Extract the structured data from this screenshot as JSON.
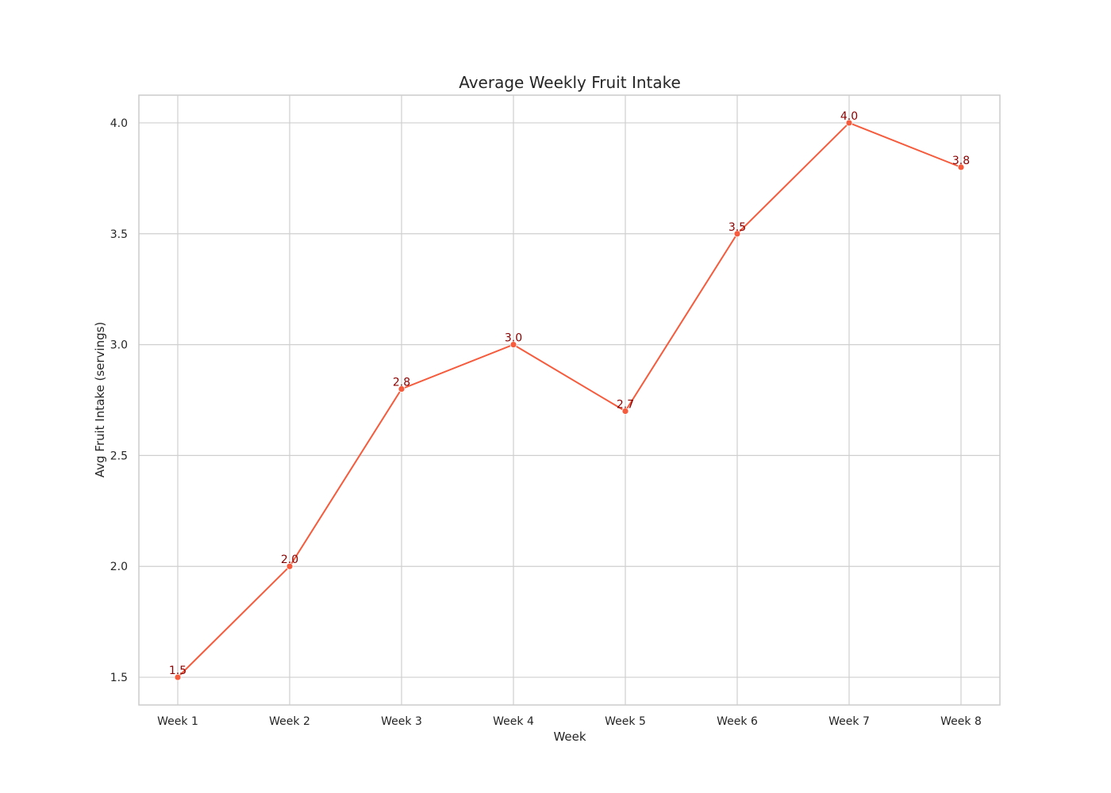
{
  "chart_data": {
    "type": "line",
    "title": "Average Weekly Fruit Intake",
    "xlabel": "Week",
    "ylabel": "Avg Fruit Intake (servings)",
    "categories": [
      "Week 1",
      "Week 2",
      "Week 3",
      "Week 4",
      "Week 5",
      "Week 6",
      "Week 7",
      "Week 8"
    ],
    "values": [
      1.5,
      2.0,
      2.8,
      3.0,
      2.7,
      3.5,
      4.0,
      3.8
    ],
    "data_labels": [
      "1.5",
      "2.0",
      "2.8",
      "3.0",
      "2.7",
      "3.5",
      "4.0",
      "3.8"
    ],
    "y_ticks": [
      1.5,
      2.0,
      2.5,
      3.0,
      3.5,
      4.0
    ],
    "y_tick_labels": [
      "1.5",
      "2.0",
      "2.5",
      "3.0",
      "3.5",
      "4.0"
    ],
    "ylim": [
      1.375,
      4.125
    ],
    "grid": true,
    "legend": false,
    "colors": {
      "line": "#f55b3c",
      "marker": "#f55b3c",
      "data_label": "#8b0000",
      "grid": "#cfcfcf",
      "text": "#262626"
    }
  }
}
